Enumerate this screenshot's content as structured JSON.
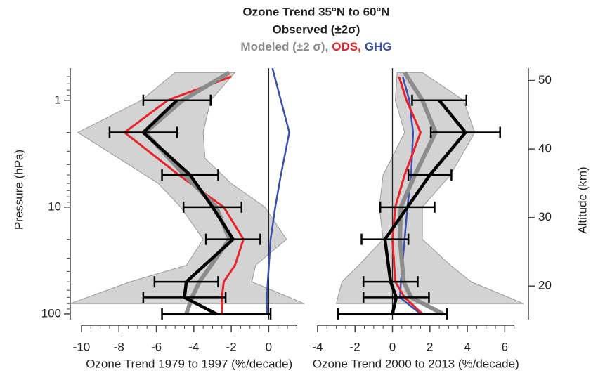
{
  "chart_data": {
    "type": "profile",
    "title": "Ozone Trend 35°N to 60°N",
    "legend": [
      {
        "name": "Observed (±2σ)",
        "color": "#000000"
      },
      {
        "name": "Modeled (±2 σ),",
        "color": "#8c8c8c"
      },
      {
        "name": "ODS,",
        "color": "#e8232a"
      },
      {
        "name": "GHG",
        "color": "#3a4fb0"
      }
    ],
    "band_color": "#d3d3d3",
    "ylabel": "Pressure (hPa)",
    "ylim": [
      0.5,
      113
    ],
    "yscale": "log",
    "y_inverted": true,
    "yticks": [
      1,
      10,
      100
    ],
    "yminor": [
      0.6,
      0.7,
      0.8,
      0.9,
      2,
      3,
      4,
      5,
      6,
      7,
      8,
      9,
      20,
      30,
      40,
      50,
      60,
      70,
      80,
      90
    ],
    "y2label": "Altitude (km)",
    "y2lim": [
      15.1,
      51.8
    ],
    "y2ticks": [
      20,
      30,
      40,
      50
    ],
    "panels": [
      {
        "xlabel": "Ozone Trend 1979 to 1997 (%/decade)",
        "xlim": [
          -10.6,
          1.9
        ],
        "xticks": [
          -10,
          -8,
          -6,
          -4,
          -2,
          0
        ],
        "xminor": [
          -10,
          -9.5,
          -9,
          -8.5,
          -8,
          -7.5,
          -7,
          -6.5,
          -6,
          -5.5,
          -5,
          -4.5,
          -4,
          -3.5,
          -3,
          -2.5,
          -2,
          -1.5,
          -1,
          -0.5,
          0,
          0.5,
          1,
          1.5
        ],
        "refline": 0,
        "band": {
          "y": [
            0.55,
            1,
            2,
            3.5,
            6,
            10,
            20,
            35,
            50,
            80
          ],
          "lower": [
            -5.0,
            -6.8,
            -10.2,
            -8.0,
            -5.9,
            -4.7,
            -3.5,
            -4.4,
            -7.4,
            -10.6
          ],
          "upper": [
            -1.8,
            -3.1,
            -3.5,
            -3.4,
            -2.0,
            -0.2,
            0.95,
            -0.7,
            -0.9,
            1.9
          ]
        },
        "ghg": {
          "y": [
            0.5,
            1,
            2,
            5,
            10,
            20,
            50,
            70,
            100
          ],
          "values": [
            0.2,
            0.65,
            1.1,
            0.65,
            0.35,
            0.1,
            -0.05,
            -0.1,
            -0.1
          ]
        },
        "ods": {
          "y": [
            0.6,
            1,
            2,
            5,
            10,
            20,
            35,
            50,
            70,
            100
          ],
          "values": [
            -2.0,
            -5.4,
            -7.7,
            -4.8,
            -2.4,
            -1.35,
            -1.8,
            -2.4,
            -2.5,
            -2.5
          ]
        },
        "modeled": {
          "y": [
            0.55,
            1,
            2,
            5,
            10,
            20,
            50,
            70,
            100
          ],
          "values": [
            -2.1,
            -4.6,
            -6.6,
            -4.5,
            -2.8,
            -2.1,
            -3.7,
            -4.1,
            -4.4
          ]
        },
        "observed": {
          "y": [
            1,
            2,
            5,
            10,
            20,
            50,
            70,
            100
          ],
          "values": [
            -4.9,
            -6.7,
            -4.2,
            -3.0,
            -1.9,
            -4.4,
            -4.5,
            -2.8
          ],
          "errors": [
            1.8,
            1.8,
            1.5,
            1.55,
            1.45,
            1.7,
            2.2,
            2.9
          ]
        }
      },
      {
        "xlabel": "Ozone Trend 2000 to 2013 (%/decade)",
        "xlim": [
          -4.26,
          7.0
        ],
        "xticks": [
          -4,
          -2,
          0,
          2,
          4,
          6
        ],
        "xminor": [
          -4,
          -3.5,
          -3,
          -2.5,
          -2,
          -1.5,
          -1,
          -0.5,
          0,
          0.5,
          1,
          1.5,
          2,
          2.5,
          3,
          3.5,
          4,
          4.5,
          5,
          5.5,
          6,
          6.5
        ],
        "refline": 0,
        "band": {
          "y": [
            0.55,
            1,
            2,
            5,
            10,
            20,
            35,
            50,
            80
          ],
          "lower": [
            0.25,
            0.15,
            0.65,
            -0.5,
            -0.7,
            -0.5,
            -1.8,
            -2.7,
            -3.0
          ],
          "upper": [
            1.6,
            3.8,
            4.4,
            3.1,
            1.6,
            1.6,
            3.1,
            4.2,
            7.0
          ]
        },
        "ghg": {
          "y": [
            0.6,
            1,
            2,
            5,
            10,
            20,
            50,
            70,
            100
          ],
          "values": [
            0.55,
            0.9,
            1.1,
            1.0,
            0.8,
            0.65,
            0.45,
            0.4,
            1.5
          ]
        },
        "ods": {
          "y": [
            0.6,
            1,
            2,
            5,
            10,
            20,
            50,
            70,
            100
          ],
          "values": [
            0.35,
            0.75,
            1.5,
            0.65,
            0.15,
            0,
            0.15,
            0.65,
            1.6
          ]
        },
        "modeled": {
          "y": [
            0.55,
            1,
            2,
            5,
            10,
            20,
            50,
            70,
            100
          ],
          "values": [
            0.65,
            1.6,
            2.3,
            1.2,
            0.45,
            0.4,
            0.6,
            1.0,
            2.7
          ]
        },
        "observed": {
          "y": [
            1,
            2,
            5,
            10,
            20,
            50,
            70,
            100
          ],
          "values": [
            2.5,
            3.9,
            2.0,
            0.8,
            -0.4,
            -0.1,
            0.2,
            0.0
          ],
          "errors": [
            1.45,
            1.85,
            1.15,
            1.45,
            1.25,
            1.45,
            1.75,
            2.9
          ]
        }
      }
    ]
  }
}
